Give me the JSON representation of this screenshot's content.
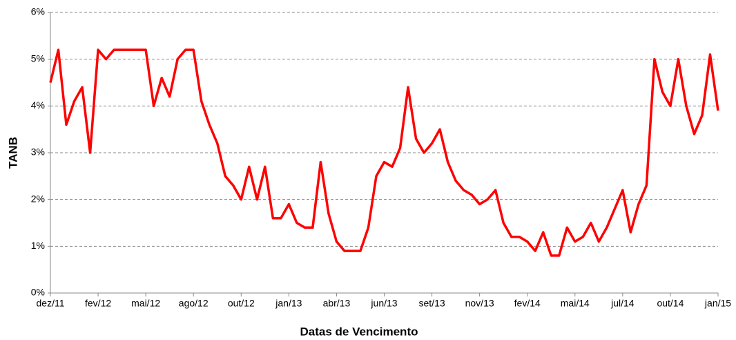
{
  "chart_data": {
    "type": "line",
    "ylabel": "TANB",
    "xlabel": "Datas de Vencimento",
    "categories": [
      "dez/11",
      null,
      null,
      null,
      null,
      null,
      "fev/12",
      null,
      null,
      null,
      null,
      null,
      "mai/12",
      null,
      null,
      null,
      null,
      null,
      "ago/12",
      null,
      null,
      null,
      null,
      null,
      "out/12",
      null,
      null,
      null,
      null,
      null,
      "jan/13",
      null,
      null,
      null,
      null,
      null,
      "abr/13",
      null,
      null,
      null,
      null,
      null,
      "jun/13",
      null,
      null,
      null,
      null,
      null,
      "set/13",
      null,
      null,
      null,
      null,
      null,
      "nov/13",
      null,
      null,
      null,
      null,
      null,
      "fev/14",
      null,
      null,
      null,
      null,
      null,
      "mai/14",
      null,
      null,
      null,
      null,
      null,
      "jul/14",
      null,
      null,
      null,
      null,
      null,
      "out/14",
      null,
      null,
      null,
      null,
      null,
      "jan/15"
    ],
    "series": [
      {
        "name": "TANB",
        "color": "#ff0000",
        "values": [
          4.5,
          5.2,
          3.6,
          4.1,
          4.4,
          3.0,
          5.2,
          5.0,
          5.2,
          5.2,
          5.2,
          5.2,
          5.2,
          4.0,
          4.6,
          4.2,
          5.0,
          5.2,
          5.2,
          4.1,
          3.6,
          3.2,
          2.5,
          2.3,
          2.0,
          2.7,
          2.0,
          2.7,
          1.6,
          1.6,
          1.9,
          1.5,
          1.4,
          1.4,
          2.8,
          1.7,
          1.1,
          0.9,
          0.9,
          0.9,
          1.4,
          2.5,
          2.8,
          2.7,
          3.1,
          4.4,
          3.3,
          3.0,
          3.2,
          3.5,
          2.8,
          2.4,
          2.2,
          2.1,
          1.9,
          2.0,
          2.2,
          1.5,
          1.2,
          1.2,
          1.1,
          0.9,
          1.3,
          0.8,
          0.8,
          1.4,
          1.1,
          1.2,
          1.5,
          1.1,
          1.4,
          1.8,
          2.2,
          1.3,
          1.9,
          2.3,
          5.0,
          4.3,
          4.0,
          5.0,
          4.0,
          3.4,
          3.8,
          5.1,
          3.9
        ]
      }
    ],
    "ylim": [
      0,
      6
    ],
    "yticks": [
      {
        "value": 0,
        "label": "0%"
      },
      {
        "value": 1,
        "label": "1%"
      },
      {
        "value": 2,
        "label": "2%"
      },
      {
        "value": 3,
        "label": "3%"
      },
      {
        "value": 4,
        "label": "4%"
      },
      {
        "value": 5,
        "label": "5%"
      },
      {
        "value": 6,
        "label": "6%"
      }
    ],
    "grid": true
  }
}
